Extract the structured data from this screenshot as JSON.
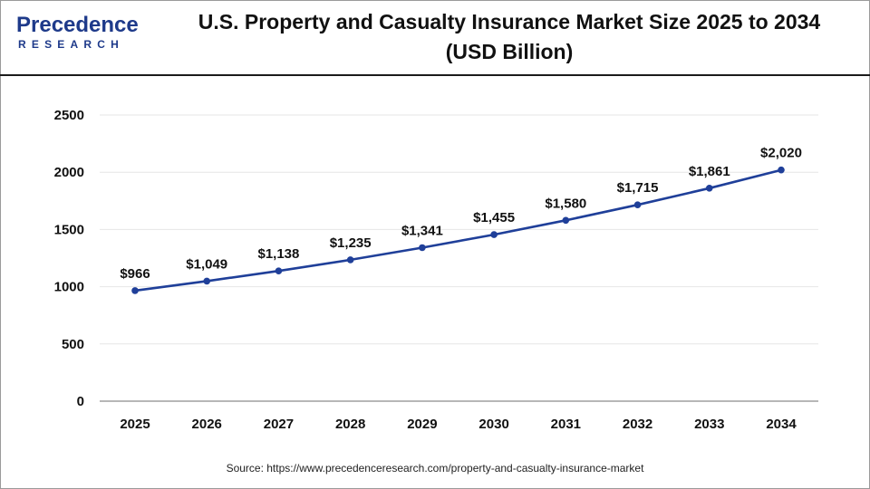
{
  "header": {
    "logo_word": "Precedence",
    "logo_sub": "RESEARCH",
    "title_line1": "U.S. Property and Casualty Insurance Market Size 2025 to 2034",
    "title_line2": "(USD Billion)"
  },
  "source_text": "Source: https://www.precedenceresearch.com/property-and-casualty-insurance-market",
  "colors": {
    "line": "#1f3f99",
    "marker": "#1f3f99",
    "grid": "#e6e6e6",
    "axis": "#8c8c8c",
    "text": "#111111",
    "brand": "#1e3a8a"
  },
  "chart_data": {
    "type": "line",
    "title": "U.S. Property and Casualty Insurance Market Size 2025 to 2034 (USD Billion)",
    "xlabel": "",
    "ylabel": "",
    "categories": [
      "2025",
      "2026",
      "2027",
      "2028",
      "2029",
      "2030",
      "2031",
      "2032",
      "2033",
      "2034"
    ],
    "values": [
      966,
      1049,
      1138,
      1235,
      1341,
      1455,
      1580,
      1715,
      1861,
      2020
    ],
    "data_labels": [
      "$966",
      "$1,049",
      "$1,138",
      "$1,235",
      "$1,341",
      "$1,455",
      "$1,580",
      "$1,715",
      "$1,861",
      "$2,020"
    ],
    "ylim": [
      0,
      2500
    ],
    "yticks": [
      0,
      500,
      1000,
      1500,
      2000,
      2500
    ],
    "ytick_labels": [
      "0",
      "500",
      "1000",
      "1500",
      "2000",
      "2500"
    ],
    "grid": true,
    "legend": "none"
  }
}
